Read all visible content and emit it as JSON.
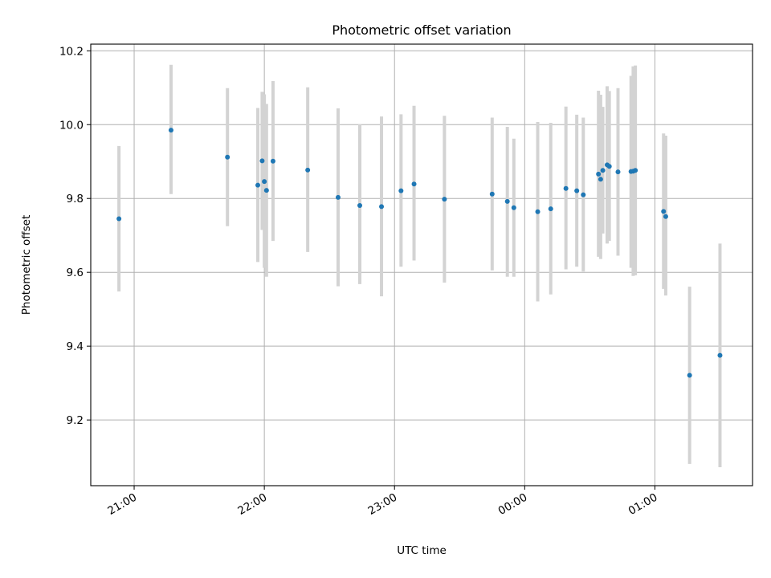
{
  "chart_data": {
    "type": "scatter",
    "title": "Photometric offset variation",
    "xlabel": "UTC time",
    "ylabel": "Photometric offset",
    "x_range": [
      "20:40",
      "01:45"
    ],
    "ylim": [
      9.022,
      10.218
    ],
    "x_ticks": [
      "21:00",
      "22:00",
      "23:00",
      "00:00",
      "01:00"
    ],
    "y_ticks": [
      9.2,
      9.4,
      9.6,
      9.8,
      10.0,
      10.2
    ],
    "y_tick_labels": [
      "9.2",
      "9.4",
      "9.6",
      "9.8",
      "10.0",
      "10.2"
    ],
    "grid": true,
    "marker_color": "#1f77b4",
    "errorbar_color": "#d3d3d3",
    "series": [
      {
        "points": [
          {
            "x": "20:53",
            "y": 9.745,
            "low": 9.548,
            "high": 9.942
          },
          {
            "x": "21:17",
            "y": 9.985,
            "low": 9.812,
            "high": 10.162
          },
          {
            "x": "21:43",
            "y": 9.912,
            "low": 9.725,
            "high": 10.099
          },
          {
            "x": "21:57",
            "y": 9.836,
            "low": 9.628,
            "high": 10.045
          },
          {
            "x": "21:59",
            "y": 9.902,
            "low": 9.715,
            "high": 10.089
          },
          {
            "x": "22:00",
            "y": 9.846,
            "low": 9.612,
            "high": 10.082
          },
          {
            "x": "22:01",
            "y": 9.822,
            "low": 9.588,
            "high": 10.056
          },
          {
            "x": "22:04",
            "y": 9.901,
            "low": 9.685,
            "high": 10.118
          },
          {
            "x": "22:20",
            "y": 9.877,
            "low": 9.655,
            "high": 10.101
          },
          {
            "x": "22:34",
            "y": 9.803,
            "low": 9.562,
            "high": 10.044
          },
          {
            "x": "22:44",
            "y": 9.781,
            "low": 9.568,
            "high": 10.001
          },
          {
            "x": "22:54",
            "y": 9.778,
            "low": 9.535,
            "high": 10.022
          },
          {
            "x": "23:03",
            "y": 9.821,
            "low": 9.615,
            "high": 10.028
          },
          {
            "x": "23:09",
            "y": 9.839,
            "low": 9.632,
            "high": 10.051
          },
          {
            "x": "23:23",
            "y": 9.798,
            "low": 9.572,
            "high": 10.024
          },
          {
            "x": "23:45",
            "y": 9.812,
            "low": 9.605,
            "high": 10.019
          },
          {
            "x": "23:52",
            "y": 9.792,
            "low": 9.588,
            "high": 9.994
          },
          {
            "x": "23:55",
            "y": 9.775,
            "low": 9.588,
            "high": 9.962
          },
          {
            "x": "00:06",
            "y": 9.764,
            "low": 9.521,
            "high": 10.007
          },
          {
            "x": "00:12",
            "y": 9.772,
            "low": 9.54,
            "high": 10.005
          },
          {
            "x": "00:19",
            "y": 9.827,
            "low": 9.608,
            "high": 10.049
          },
          {
            "x": "00:24",
            "y": 9.821,
            "low": 9.615,
            "high": 10.027
          },
          {
            "x": "00:27",
            "y": 9.81,
            "low": 9.602,
            "high": 10.019
          },
          {
            "x": "00:34",
            "y": 9.866,
            "low": 9.642,
            "high": 10.092
          },
          {
            "x": "00:35",
            "y": 9.852,
            "low": 9.636,
            "high": 10.081
          },
          {
            "x": "00:36",
            "y": 9.876,
            "low": 9.705,
            "high": 10.048
          },
          {
            "x": "00:38",
            "y": 9.891,
            "low": 9.678,
            "high": 10.104
          },
          {
            "x": "00:39",
            "y": 9.887,
            "low": 9.685,
            "high": 10.091
          },
          {
            "x": "00:43",
            "y": 9.872,
            "low": 9.645,
            "high": 10.099
          },
          {
            "x": "00:49",
            "y": 9.873,
            "low": 9.612,
            "high": 10.132
          },
          {
            "x": "00:50",
            "y": 9.874,
            "low": 9.59,
            "high": 10.158
          },
          {
            "x": "00:51",
            "y": 9.876,
            "low": 9.592,
            "high": 10.16
          },
          {
            "x": "01:04",
            "y": 9.765,
            "low": 9.555,
            "high": 9.976
          },
          {
            "x": "01:05",
            "y": 9.751,
            "low": 9.537,
            "high": 9.97
          },
          {
            "x": "01:16",
            "y": 9.321,
            "low": 9.081,
            "high": 9.561
          },
          {
            "x": "01:30",
            "y": 9.375,
            "low": 9.072,
            "high": 9.678
          }
        ]
      }
    ]
  }
}
